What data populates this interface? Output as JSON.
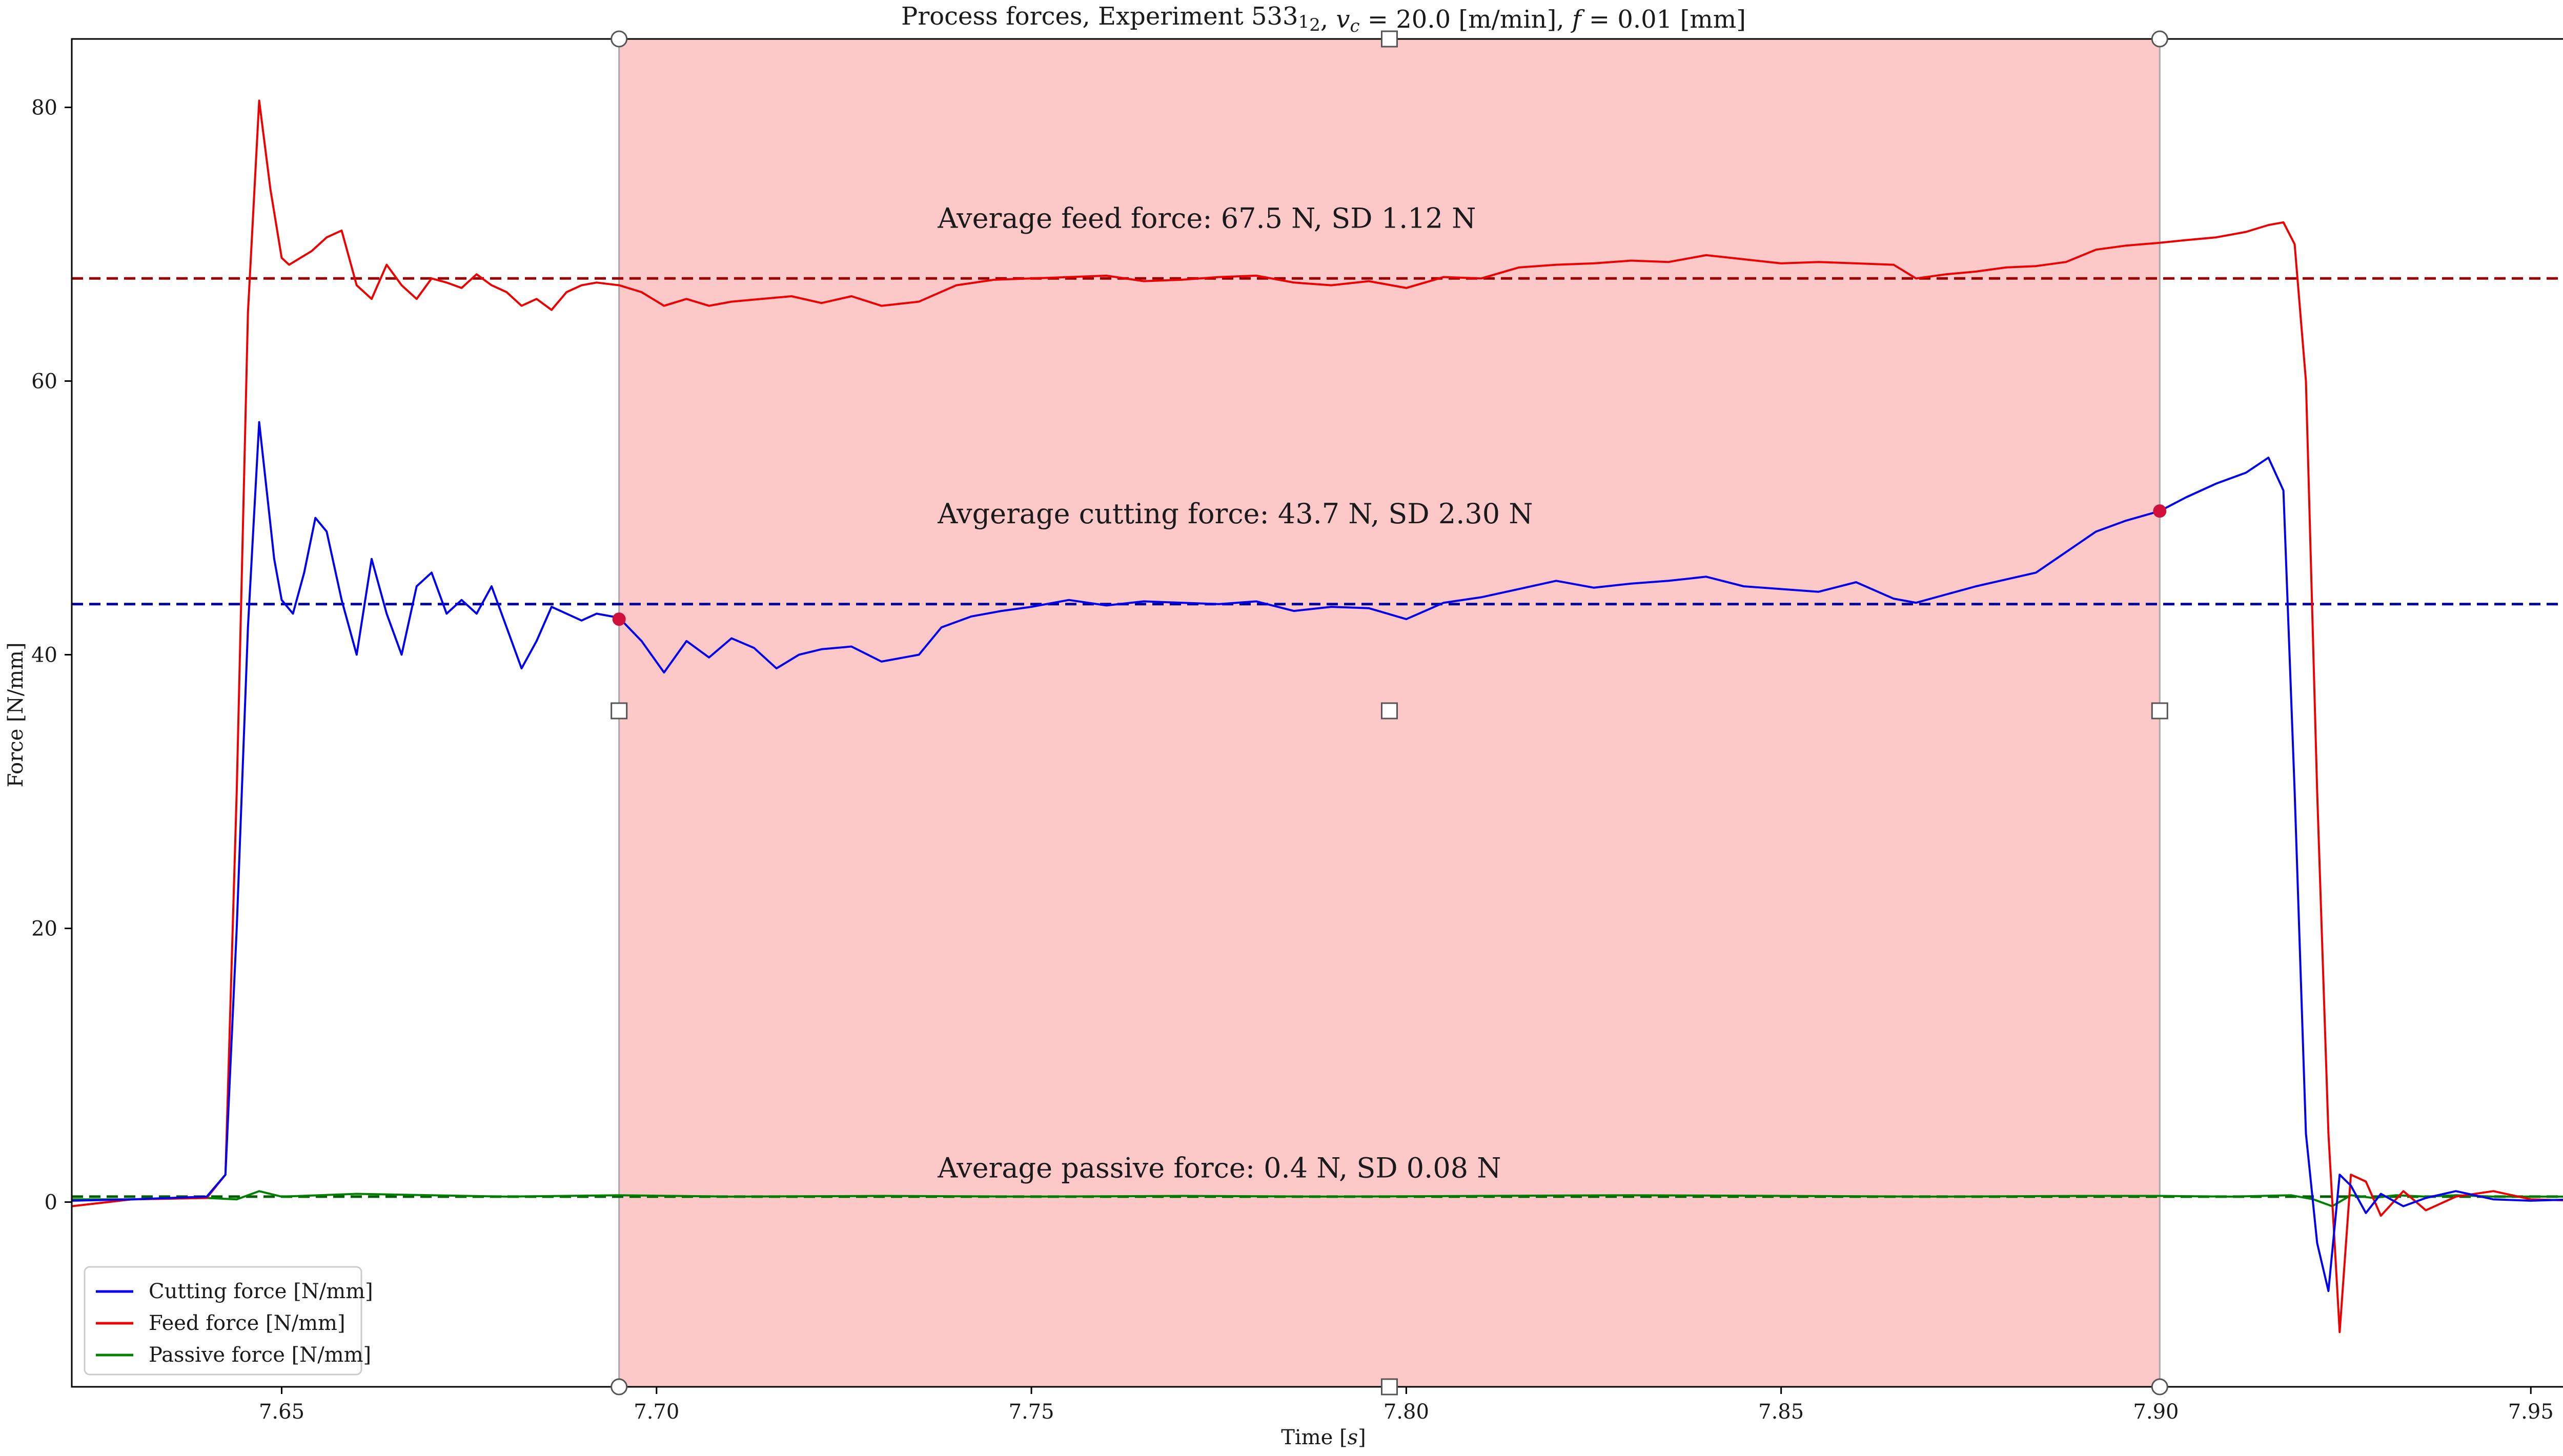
{
  "chart_data": {
    "type": "line",
    "title": "Process forces, Experiment 533_1_2, v_c = 20.0 [m/min], f = 0.01 [mm]",
    "title_parts": {
      "prefix": "Process forces, Experiment 533",
      "sub1": "1",
      "sub2": "2",
      "mid1": ", ",
      "vc_symbol": "v",
      "vc_sub": "c",
      "vc_value": " = 20.0 [m/min], ",
      "f_symbol": "f",
      "f_value": " = 0.01 [mm]"
    },
    "xlabel": "Time [s]",
    "xlabel_parts": {
      "prefix": "Time [",
      "unit": "s",
      "suffix": "]"
    },
    "ylabel": "Force [N/mm]",
    "xlim": [
      7.622,
      7.956
    ],
    "ylim": [
      -13.5,
      85
    ],
    "x_ticks": [
      7.65,
      7.7,
      7.75,
      7.8,
      7.85,
      7.9,
      7.95
    ],
    "x_tick_labels": [
      "7.65",
      "7.70",
      "7.75",
      "7.80",
      "7.85",
      "7.90",
      "7.95"
    ],
    "y_ticks": [
      0,
      20,
      40,
      60,
      80
    ],
    "y_tick_labels": [
      "0",
      "20",
      "40",
      "60",
      "80"
    ],
    "grid": false,
    "legend_position": "bottom-left",
    "highlight_region": {
      "x_start": 7.695,
      "x_end": 7.9005,
      "color": "#fcc8c8"
    },
    "series": [
      {
        "name": "Cutting force [N/mm]",
        "color": "#0000ee",
        "x": [
          7.622,
          7.63,
          7.64,
          7.6425,
          7.644,
          7.6455,
          7.647,
          7.648,
          7.649,
          7.65,
          7.6515,
          7.653,
          7.6545,
          7.656,
          7.658,
          7.66,
          7.662,
          7.664,
          7.666,
          7.668,
          7.67,
          7.672,
          7.674,
          7.676,
          7.678,
          7.68,
          7.682,
          7.684,
          7.686,
          7.688,
          7.69,
          7.692,
          7.695,
          7.698,
          7.701,
          7.704,
          7.707,
          7.71,
          7.713,
          7.716,
          7.719,
          7.722,
          7.726,
          7.73,
          7.735,
          7.738,
          7.742,
          7.746,
          7.75,
          7.755,
          7.76,
          7.765,
          7.77,
          7.775,
          7.78,
          7.785,
          7.79,
          7.795,
          7.8,
          7.805,
          7.81,
          7.815,
          7.82,
          7.825,
          7.83,
          7.835,
          7.84,
          7.845,
          7.85,
          7.855,
          7.86,
          7.865,
          7.868,
          7.872,
          7.876,
          7.88,
          7.884,
          7.888,
          7.892,
          7.896,
          7.9005,
          7.904,
          7.908,
          7.912,
          7.915,
          7.917,
          7.9185,
          7.92,
          7.9215,
          7.923,
          7.9245,
          7.926,
          7.928,
          7.93,
          7.933,
          7.936,
          7.94,
          7.945,
          7.95,
          7.956
        ],
        "y": [
          0.1,
          0.2,
          0.4,
          2,
          20,
          42,
          57,
          52,
          47,
          44,
          43,
          46,
          50,
          49,
          44,
          40,
          47,
          43,
          40,
          45,
          46,
          43,
          44,
          43,
          45,
          42,
          39,
          41,
          43.5,
          43,
          42.5,
          43,
          42.7,
          41,
          38.7,
          41,
          39.8,
          41.2,
          40.5,
          39,
          40,
          40.4,
          40.6,
          39.5,
          40,
          42,
          42.8,
          43.2,
          43.5,
          44,
          43.6,
          43.9,
          43.8,
          43.7,
          43.9,
          43.2,
          43.5,
          43.4,
          42.6,
          43.8,
          44.2,
          44.8,
          45.4,
          44.9,
          45.2,
          45.4,
          45.7,
          45.0,
          44.8,
          44.6,
          45.3,
          44.1,
          43.8,
          44.4,
          45.0,
          45.5,
          46.0,
          47.5,
          49.0,
          49.8,
          50.5,
          51.5,
          52.5,
          53.3,
          54.4,
          52,
          30,
          5,
          -3,
          -6.5,
          2,
          1.2,
          -0.8,
          0.6,
          -0.3,
          0.3,
          0.8,
          0.2,
          0.1,
          0.2
        ]
      },
      {
        "name": "Feed force [N/mm]",
        "color": "#ee0000",
        "x": [
          7.622,
          7.63,
          7.64,
          7.6425,
          7.644,
          7.6455,
          7.647,
          7.6485,
          7.65,
          7.651,
          7.6525,
          7.654,
          7.656,
          7.658,
          7.66,
          7.662,
          7.664,
          7.666,
          7.668,
          7.67,
          7.672,
          7.674,
          7.676,
          7.678,
          7.68,
          7.682,
          7.684,
          7.686,
          7.688,
          7.69,
          7.692,
          7.695,
          7.698,
          7.701,
          7.704,
          7.707,
          7.71,
          7.714,
          7.718,
          7.722,
          7.726,
          7.73,
          7.735,
          7.74,
          7.745,
          7.75,
          7.755,
          7.76,
          7.765,
          7.77,
          7.775,
          7.78,
          7.785,
          7.79,
          7.795,
          7.8,
          7.805,
          7.81,
          7.815,
          7.82,
          7.825,
          7.83,
          7.835,
          7.84,
          7.845,
          7.85,
          7.855,
          7.86,
          7.865,
          7.868,
          7.872,
          7.876,
          7.88,
          7.884,
          7.888,
          7.892,
          7.896,
          7.9005,
          7.904,
          7.908,
          7.912,
          7.915,
          7.917,
          7.9185,
          7.92,
          7.9215,
          7.923,
          7.9245,
          7.926,
          7.928,
          7.93,
          7.933,
          7.936,
          7.94,
          7.945,
          7.95,
          7.956
        ],
        "y": [
          -0.3,
          0.2,
          0.3,
          2,
          30,
          65,
          80.5,
          74,
          69,
          68.5,
          69,
          69.5,
          70.5,
          71,
          67,
          66,
          68.5,
          67,
          66,
          67.5,
          67.2,
          66.8,
          67.8,
          67,
          66.5,
          65.5,
          66,
          65.2,
          66.5,
          67,
          67.2,
          67,
          66.5,
          65.5,
          66,
          65.5,
          65.8,
          66,
          66.2,
          65.7,
          66.2,
          65.5,
          65.8,
          67,
          67.4,
          67.5,
          67.6,
          67.7,
          67.3,
          67.4,
          67.6,
          67.7,
          67.2,
          67,
          67.3,
          66.8,
          67.6,
          67.5,
          68.3,
          68.5,
          68.6,
          68.8,
          68.7,
          69.2,
          68.9,
          68.6,
          68.7,
          68.6,
          68.5,
          67.5,
          67.8,
          68.0,
          68.3,
          68.4,
          68.7,
          69.6,
          69.9,
          70.1,
          70.3,
          70.5,
          70.9,
          71.4,
          71.6,
          70,
          60,
          30,
          5,
          -9.5,
          2,
          1.5,
          -1,
          0.8,
          -0.6,
          0.4,
          0.8,
          0.2,
          0.1
        ]
      },
      {
        "name": "Passive force [N/mm]",
        "color": "#008000",
        "x": [
          7.622,
          7.63,
          7.64,
          7.644,
          7.647,
          7.65,
          7.655,
          7.66,
          7.67,
          7.68,
          7.695,
          7.71,
          7.73,
          7.75,
          7.77,
          7.79,
          7.81,
          7.83,
          7.85,
          7.87,
          7.89,
          7.9005,
          7.91,
          7.918,
          7.921,
          7.9235,
          7.926,
          7.929,
          7.932,
          7.936,
          7.94,
          7.945,
          7.95,
          7.956
        ],
        "y": [
          0.2,
          0.2,
          0.3,
          0.2,
          0.8,
          0.4,
          0.5,
          0.6,
          0.5,
          0.4,
          0.5,
          0.4,
          0.45,
          0.4,
          0.45,
          0.4,
          0.45,
          0.5,
          0.45,
          0.4,
          0.45,
          0.45,
          0.4,
          0.5,
          0.2,
          -0.3,
          0.5,
          0.3,
          0.5,
          0.4,
          0.5,
          0.4,
          0.4,
          0.4
        ]
      }
    ],
    "average_lines": [
      {
        "value": 67.5,
        "color": "#990000"
      },
      {
        "value": 43.7,
        "color": "#000099"
      },
      {
        "value": 0.4,
        "color": "#006000"
      }
    ],
    "annotations": [
      {
        "text": "Average feed force: 67.5 N, SD 1.12 N",
        "x": 7.7375,
        "y": 71.2
      },
      {
        "text": "Avgerage cutting force: 43.7 N, SD 2.30 N",
        "x": 7.7375,
        "y": 49.6
      },
      {
        "text": "Average passive force: 0.4 N, SD 0.08 N",
        "x": 7.7375,
        "y": 1.8
      }
    ],
    "markers": [
      {
        "x": 7.695,
        "y": 42.6,
        "color": "#d0103a"
      },
      {
        "x": 7.9005,
        "y": 50.5,
        "color": "#d0103a"
      }
    ],
    "handles": [
      {
        "shape": "circle",
        "x": 7.695,
        "y": 85
      },
      {
        "shape": "square",
        "x": 7.79775,
        "y": 85
      },
      {
        "shape": "circle",
        "x": 7.9005,
        "y": 85
      },
      {
        "shape": "square",
        "x": 7.695,
        "y": 35.9
      },
      {
        "shape": "square",
        "x": 7.79775,
        "y": 35.9
      },
      {
        "shape": "square",
        "x": 7.9005,
        "y": 35.9
      },
      {
        "shape": "circle",
        "x": 7.695,
        "y": -13.5
      },
      {
        "shape": "square",
        "x": 7.79775,
        "y": -13.5
      },
      {
        "shape": "circle",
        "x": 7.9005,
        "y": -13.5
      }
    ]
  }
}
